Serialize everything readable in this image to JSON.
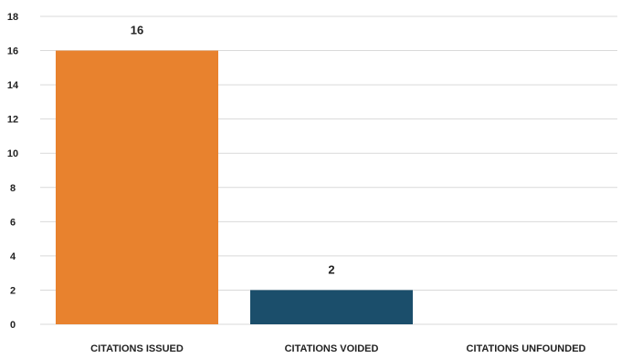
{
  "chart_data": {
    "type": "bar",
    "title": "",
    "xlabel": "",
    "ylabel": "",
    "categories": [
      "CITATIONS ISSUED",
      "CITATIONS VOIDED",
      "CITATIONS UNFOUNDED"
    ],
    "values": [
      16,
      2,
      0
    ],
    "data_labels": [
      "16",
      "2",
      ""
    ],
    "bar_colors": [
      "#e8822e",
      "#1b4e6b",
      "#e8822e"
    ],
    "ylim": [
      0,
      18
    ],
    "yticks": [
      0,
      2,
      4,
      6,
      8,
      10,
      12,
      14,
      16,
      18
    ],
    "grid": true,
    "legend": "none"
  }
}
